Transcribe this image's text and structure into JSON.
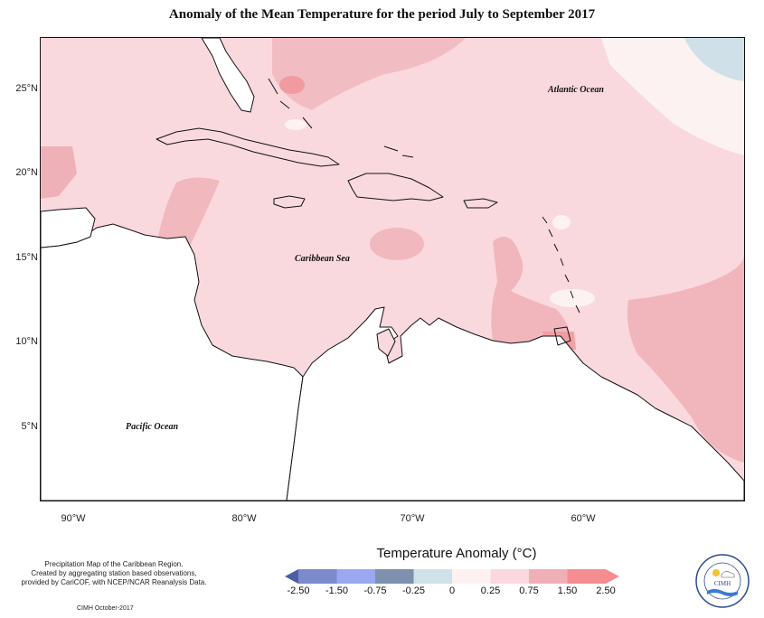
{
  "title": "Anomaly of the Mean Temperature for the period July to September 2017",
  "map": {
    "latitude_labels": [
      "25°N",
      "20°N",
      "15°N",
      "10°N",
      "5°N"
    ],
    "longitude_labels": [
      "90°W",
      "80°W",
      "70°W",
      "60°W"
    ],
    "ocean_labels": {
      "atlantic": "Atlantic Ocean",
      "caribbean": "Caribbean Sea",
      "pacific": "Pacific Ocean"
    }
  },
  "legend": {
    "title": "Temperature Anomaly (°C)",
    "labels": [
      "-2.50",
      "-1.50",
      "-0.75",
      "-0.25",
      "0",
      "0.25",
      "0.75",
      "1.50",
      "2.50"
    ],
    "colors": [
      "#4d5fa3",
      "#7a8acb",
      "#9aa8f0",
      "#7d91ae",
      "#cfe1e9",
      "#fdf1f1",
      "#fad8dd",
      "#eeb0b6",
      "#f58c90"
    ]
  },
  "credit": {
    "line1": "Precipitation Map of the Caribbean Region.",
    "line2": "Created by aggregating station based observations,",
    "line3": "provided by CariCOF, with NCEP/NCAR Reanalysis Data."
  },
  "footer": "CIMH October-2017",
  "logo_text": "CIMH",
  "colors": {
    "base_anomaly": "#fad9de",
    "warm_anomaly": "#eeb1b7",
    "hot_spot": "#f19aa0",
    "near_zero": "#fdf2f2",
    "cool_patch": "#cfe0e8",
    "land": "#ffffff"
  }
}
